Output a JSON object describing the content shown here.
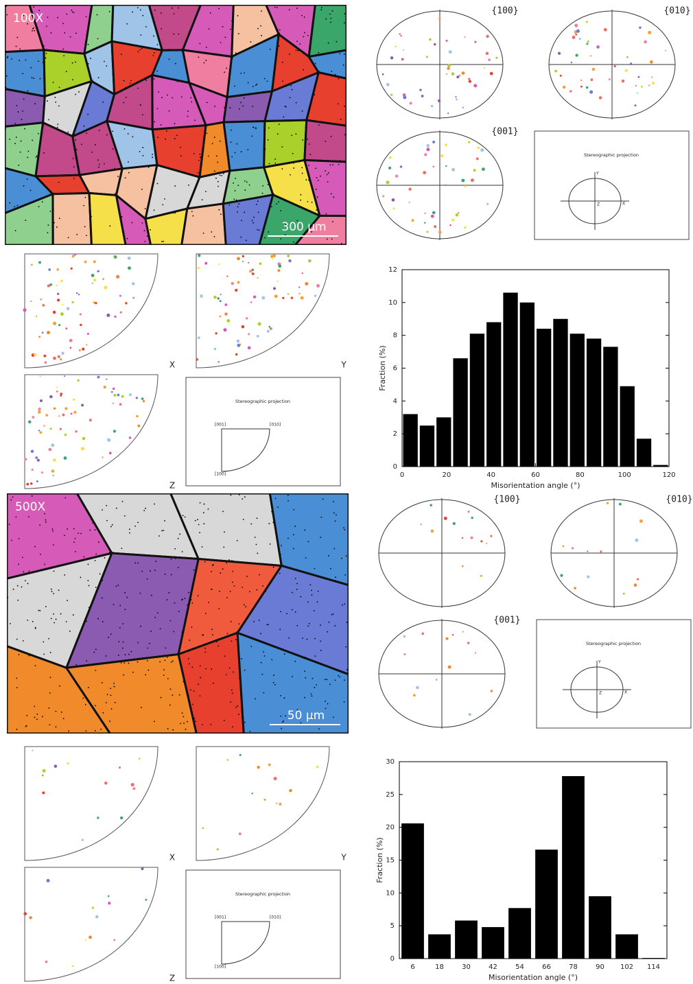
{
  "figures": [
    {
      "magnification": "100X",
      "scale_bar": "300 µm",
      "pole_figures": [
        "{100}",
        "{010}",
        "{001}"
      ],
      "projection_key": {
        "title": "Stereographic projection",
        "axes": [
          "Y",
          "Z",
          "X"
        ]
      },
      "ipf": {
        "labels": [
          "X",
          "Y",
          "Z"
        ],
        "key": {
          "title": "Stereographic projection",
          "corners": [
            "[001]",
            "[010]",
            "[100]"
          ]
        }
      }
    },
    {
      "magnification": "500X",
      "scale_bar": "50 µm",
      "pole_figures": [
        "{100}",
        "{010}",
        "{001}"
      ],
      "projection_key": {
        "title": "Stereographic projection",
        "axes": [
          "Y",
          "Z",
          "X"
        ]
      },
      "ipf": {
        "labels": [
          "X",
          "Y",
          "Z"
        ],
        "key": {
          "title": "Stereographic projection",
          "corners": [
            "[001]",
            "[010]",
            "[100]"
          ]
        }
      }
    }
  ],
  "chart_data": [
    {
      "type": "histogram",
      "x_label": "Misorientation angle (°)",
      "y_label": "Fraction (%)",
      "bins": [
        0,
        7.5,
        15,
        22.5,
        30,
        37.5,
        45,
        52.5,
        60,
        67.5,
        75,
        82.5,
        90,
        97.5,
        105,
        112.5,
        120
      ],
      "values": [
        3.2,
        2.5,
        3.0,
        6.6,
        8.1,
        8.8,
        10.6,
        10.0,
        8.4,
        9.0,
        8.1,
        7.8,
        7.3,
        4.9,
        1.7,
        0.1
      ],
      "color": "#000000",
      "xlim": [
        0,
        120
      ],
      "xticks": [
        0,
        20,
        40,
        60,
        80,
        100,
        120
      ],
      "ylim": [
        0,
        12
      ],
      "yticks": [
        0,
        2,
        4,
        6,
        8,
        10,
        12
      ]
    },
    {
      "type": "bar",
      "x_label": "Misorientation angle (°)",
      "y_label": "Fraction (%)",
      "categories": [
        "6",
        "18",
        "30",
        "42",
        "54",
        "66",
        "78",
        "90",
        "102",
        "114"
      ],
      "values": [
        20.6,
        3.7,
        5.8,
        4.8,
        7.7,
        16.6,
        27.8,
        9.5,
        3.7,
        0.1
      ],
      "color": "#000000",
      "ylim": [
        0,
        30
      ],
      "yticks": [
        0,
        5,
        10,
        15,
        20,
        25,
        30
      ]
    }
  ]
}
